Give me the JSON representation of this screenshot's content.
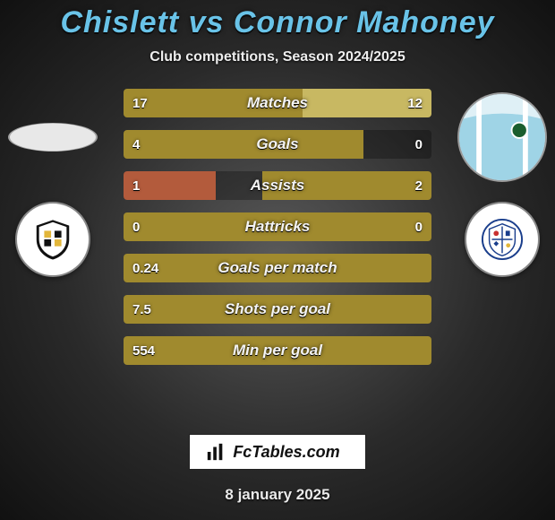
{
  "title": "Chislett vs Connor Mahoney",
  "subtitle": "Club competitions, Season 2024/2025",
  "brand": "FcTables.com",
  "date": "8 january 2025",
  "colors": {
    "accent": "#69c3e8",
    "brand_box_bg": "#ffffff",
    "brand_box_text": "#111111",
    "bar_base": "#a08a2e",
    "bar_light_right": "#c8b862",
    "bar_dark_track": "rgba(0,0,0,0.28)",
    "bar_red_left": "#b35b3c",
    "text_light": "#f4f4f4"
  },
  "bars": [
    {
      "label": "Matches",
      "left_val": "17",
      "right_val": "12",
      "left_pct": 58,
      "right_pct": 42,
      "left_color": "#a08a2e",
      "right_color": "#c8b862"
    },
    {
      "label": "Goals",
      "left_val": "4",
      "right_val": "0",
      "left_pct": 78,
      "right_pct": 0,
      "left_color": "#a08a2e",
      "right_color": "#c8b862"
    },
    {
      "label": "Assists",
      "left_val": "1",
      "right_val": "2",
      "left_pct": 30,
      "right_pct": 55,
      "left_color": "#b35b3c",
      "right_color": "#a08a2e"
    },
    {
      "label": "Hattricks",
      "left_val": "0",
      "right_val": "0",
      "left_pct": 100,
      "right_pct": 0,
      "left_color": "#a08a2e",
      "right_color": "#c8b862"
    },
    {
      "label": "Goals per match",
      "left_val": "0.24",
      "right_val": "",
      "left_pct": 100,
      "right_pct": 0,
      "left_color": "#a08a2e",
      "right_color": "#c8b862"
    },
    {
      "label": "Shots per goal",
      "left_val": "7.5",
      "right_val": "",
      "left_pct": 100,
      "right_pct": 0,
      "left_color": "#a08a2e",
      "right_color": "#c8b862"
    },
    {
      "label": "Min per goal",
      "left_val": "554",
      "right_val": "",
      "left_pct": 100,
      "right_pct": 0,
      "left_color": "#a08a2e",
      "right_color": "#c8b862"
    }
  ],
  "crest_left_colors": {
    "bg": "#ffffff",
    "shield": "#111111",
    "accent": "#e2b63a"
  },
  "crest_right_colors": {
    "bg": "#ffffff",
    "stripe": "#1a3e8c",
    "accent": "#c93030"
  },
  "jersey_right_colors": {
    "base": "#9fd4e6",
    "stripe": "#ffffff",
    "badge": "#1a5e2e"
  }
}
